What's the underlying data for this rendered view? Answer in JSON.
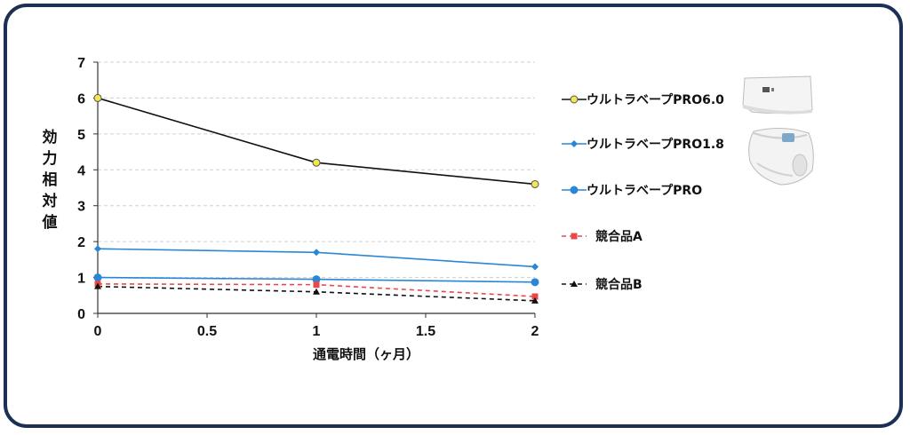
{
  "chart_data": {
    "type": "line",
    "xlabel": "通電時間（ヶ月）",
    "ylabel": "効力相対値",
    "xlim": [
      0,
      2
    ],
    "ylim": [
      0,
      7
    ],
    "x_ticks": [
      "0",
      "0.5",
      "1",
      "1.5",
      "2"
    ],
    "y_ticks": [
      "0",
      "1",
      "2",
      "3",
      "4",
      "5",
      "6",
      "7"
    ],
    "grid": "horizontal dashed",
    "legend_position": "right",
    "x": [
      0,
      1,
      2
    ],
    "series": [
      {
        "name": "ウルトラベープPRO6.0",
        "values": [
          6.0,
          4.2,
          3.6
        ],
        "color": "#111111",
        "marker": "circle",
        "marker_fill": "#f2e84a",
        "dash": "solid"
      },
      {
        "name": "ウルトラベープPRO1.8",
        "values": [
          1.8,
          1.7,
          1.3
        ],
        "color": "#2a86d6",
        "marker": "diamond",
        "marker_fill": "#2a86d6",
        "dash": "solid"
      },
      {
        "name": "ウルトラベープPRO",
        "values": [
          1.0,
          0.95,
          0.87
        ],
        "color": "#2a86d6",
        "marker": "circle",
        "marker_fill": "#2a86d6",
        "dash": "solid"
      },
      {
        "name": "競合品A",
        "values": [
          0.82,
          0.8,
          0.47
        ],
        "color": "#e84848",
        "marker": "square",
        "marker_fill": "#e84848",
        "dash": "dashed"
      },
      {
        "name": "競合品B",
        "values": [
          0.75,
          0.6,
          0.35
        ],
        "color": "#111111",
        "marker": "triangle",
        "marker_fill": "#111111",
        "dash": "dashed"
      }
    ]
  },
  "colors": {
    "frame_border": "#1c2f55",
    "grid": "#cfcfcf"
  },
  "images": {
    "product1": "device-wall-unit-image",
    "product2": "device-portable-unit-image"
  }
}
